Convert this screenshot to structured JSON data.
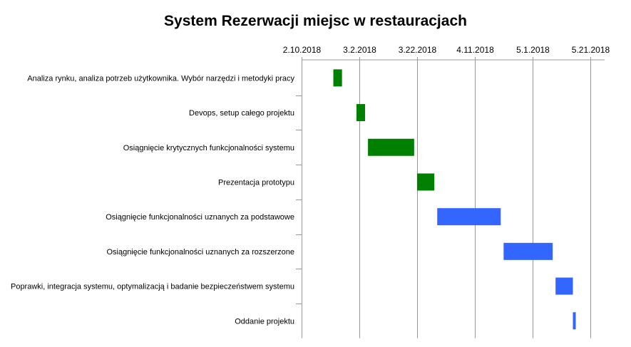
{
  "chart_data": {
    "type": "gantt",
    "title": "System Rezerwacji miejsc w restauracjach",
    "x_ticks": [
      "2.10.2018",
      "3.2.2018",
      "3.22.2018",
      "4.11.2018",
      "5.1.2018",
      "5.21.2018"
    ],
    "x_range": [
      "2018-02-10",
      "2018-05-26"
    ],
    "grid": true,
    "tasks": [
      {
        "label": "Analiza rynku, analiza potrzeb użytkownika. Wybór narzędzi i metodyki pracy",
        "start": "2018-02-21",
        "end": "2018-02-24",
        "color": "#008000"
      },
      {
        "label": "Devops, setup całego projektu",
        "start": "2018-03-01",
        "end": "2018-03-04",
        "color": "#008000"
      },
      {
        "label": "Osiągnięcie krytycznych funkcjonalności systemu",
        "start": "2018-03-05",
        "end": "2018-03-21",
        "color": "#008000"
      },
      {
        "label": "Prezentacja prototypu",
        "start": "2018-03-22",
        "end": "2018-03-28",
        "color": "#008000"
      },
      {
        "label": "Osiągnięcie funkcjonalności uznanych za podstawowe",
        "start": "2018-03-29",
        "end": "2018-04-20",
        "color": "#3366ff"
      },
      {
        "label": "Osiągnięcie funkcjonalności uznanych za rozszerzone",
        "start": "2018-04-21",
        "end": "2018-05-08",
        "color": "#3366ff"
      },
      {
        "label": "Poprawki, integracja systemu, optymalizacją i badanie bezpieczeństwem systemu",
        "start": "2018-05-09",
        "end": "2018-05-15",
        "color": "#3366ff"
      },
      {
        "label": "Oddanie projektu",
        "start": "2018-05-15",
        "end": "2018-05-16",
        "color": "#3366ff"
      }
    ]
  }
}
